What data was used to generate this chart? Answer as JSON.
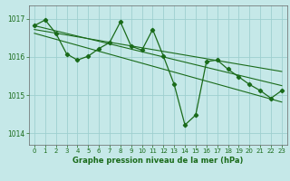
{
  "xlabel": "Graphe pression niveau de la mer (hPa)",
  "background_color": "#c5e8e8",
  "grid_color": "#9ecfcf",
  "line_color": "#1a6b1a",
  "xlim": [
    -0.5,
    23.5
  ],
  "ylim": [
    1013.7,
    1017.35
  ],
  "yticks": [
    1014,
    1015,
    1016,
    1017
  ],
  "xticks": [
    0,
    1,
    2,
    3,
    4,
    5,
    6,
    7,
    8,
    9,
    10,
    11,
    12,
    13,
    14,
    15,
    16,
    17,
    18,
    19,
    20,
    21,
    22,
    23
  ],
  "main_data_x": [
    0,
    1,
    2,
    3,
    4,
    5,
    6,
    7,
    8,
    9,
    10,
    11,
    12,
    13,
    14,
    15,
    16,
    17,
    18,
    19,
    20,
    21,
    22,
    23
  ],
  "main_data_y": [
    1016.82,
    1016.97,
    1016.62,
    1016.08,
    1015.92,
    1016.02,
    1016.22,
    1016.38,
    1016.92,
    1016.28,
    1016.18,
    1016.72,
    1016.02,
    1015.28,
    1014.22,
    1014.48,
    1015.88,
    1015.92,
    1015.68,
    1015.48,
    1015.28,
    1015.12,
    1014.92,
    1015.12
  ],
  "upper_line_x": [
    0,
    23
  ],
  "upper_line_y": [
    1016.82,
    1015.25
  ],
  "middle_line_x": [
    0,
    23
  ],
  "middle_line_y": [
    1016.72,
    1015.62
  ],
  "lower_line_x": [
    0,
    23
  ],
  "lower_line_y": [
    1016.62,
    1014.82
  ]
}
